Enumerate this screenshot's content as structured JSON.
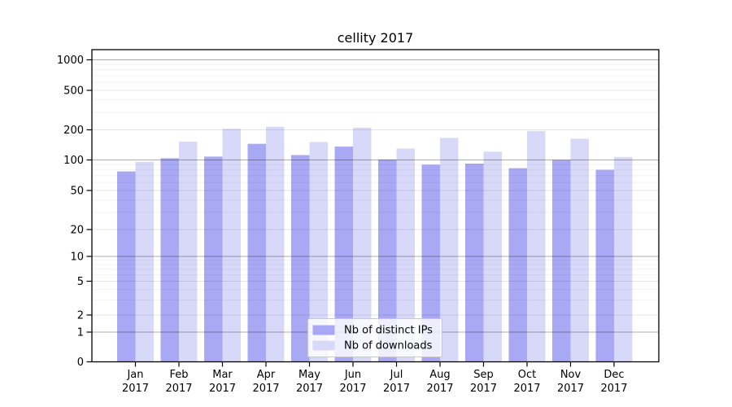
{
  "figure": {
    "title": "cellity 2017",
    "background": "#ffffff"
  },
  "chart_data": {
    "type": "bar",
    "title": "cellity 2017",
    "categories": [
      "Jan",
      "Feb",
      "Mar",
      "Apr",
      "May",
      "Jun",
      "Jul",
      "Aug",
      "Sep",
      "Oct",
      "Nov",
      "Dec"
    ],
    "x_tick_year": "2017",
    "series": [
      {
        "name": "Nb of distinct IPs",
        "color": "#a8a8f4",
        "values": [
          77,
          104,
          108,
          145,
          112,
          136,
          101,
          90,
          92,
          83,
          100,
          80
        ]
      },
      {
        "name": "Nb of downloads",
        "color": "#d8d8f9",
        "values": [
          96,
          152,
          205,
          215,
          151,
          210,
          130,
          166,
          121,
          195,
          163,
          107
        ]
      }
    ],
    "yscale": "log-with-zero",
    "yticks": [
      0,
      1,
      2,
      5,
      10,
      20,
      50,
      100,
      200,
      500,
      1000
    ],
    "ylim": [
      0,
      1300
    ],
    "grid": "horizontal",
    "gridline_dark_values": [
      1,
      10,
      100,
      1000
    ],
    "legend": {
      "position": "inside-bottom-center"
    }
  }
}
